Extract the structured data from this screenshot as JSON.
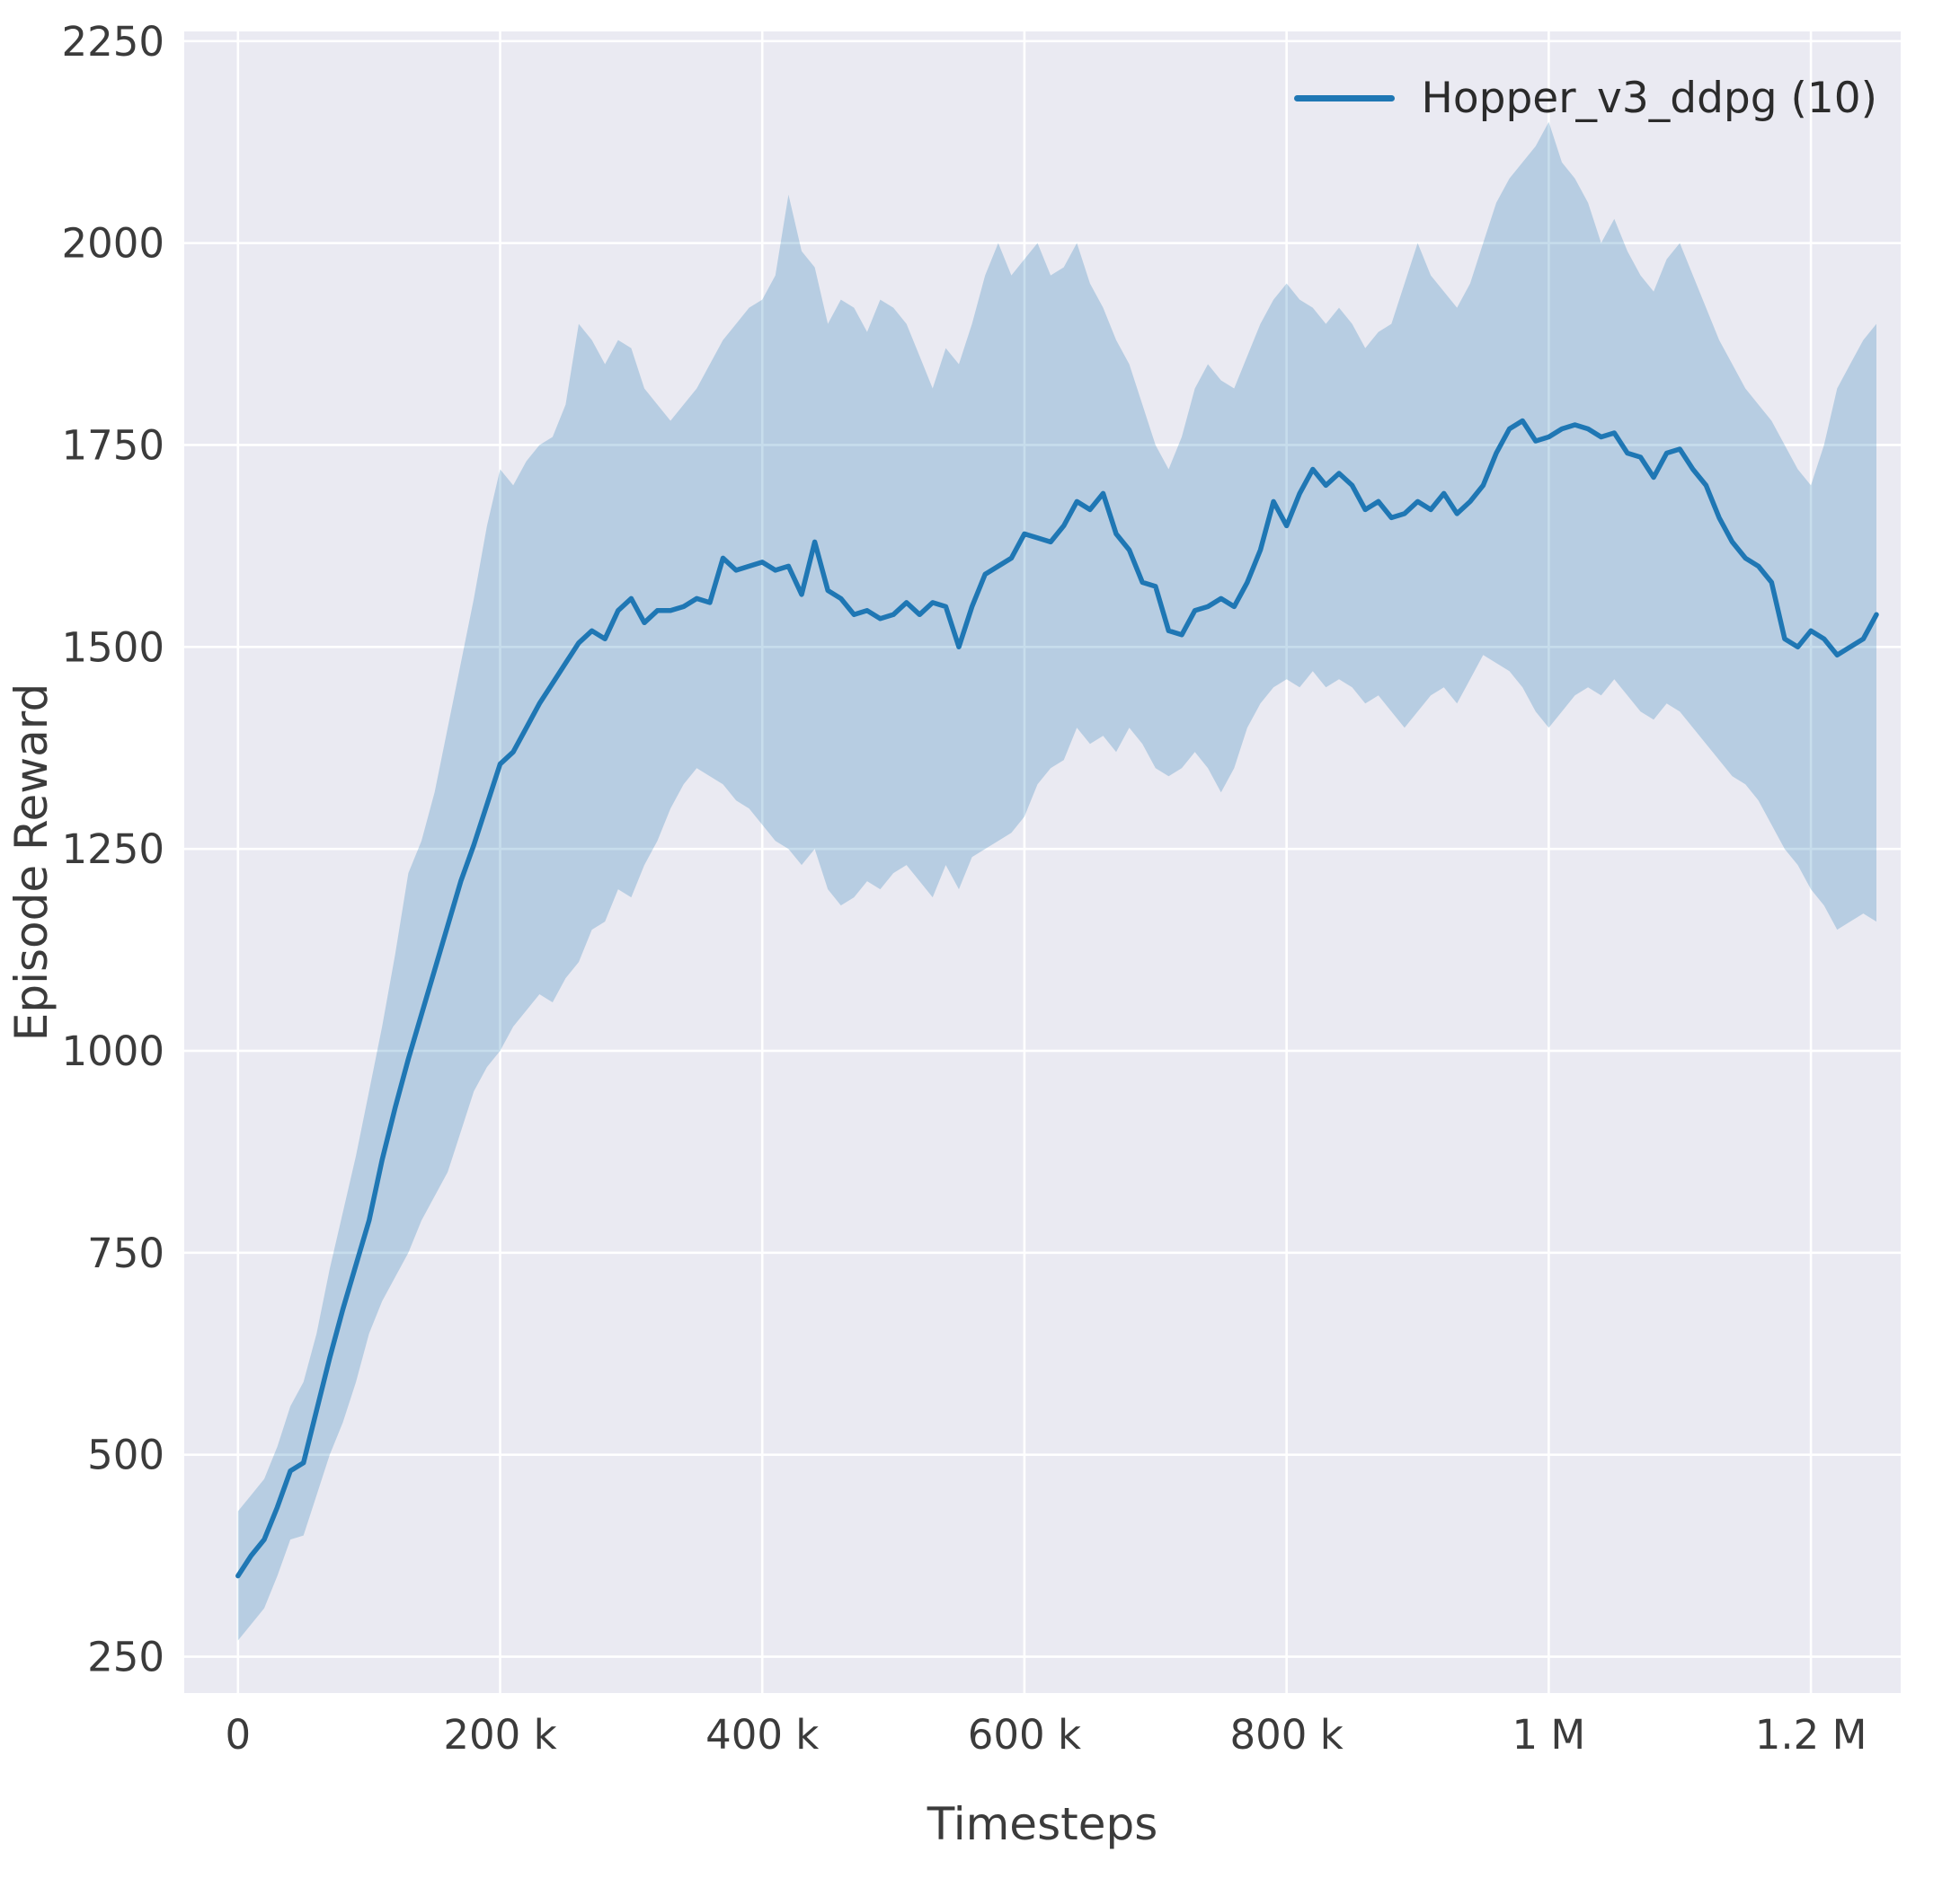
{
  "chart_data": {
    "type": "line",
    "title": "",
    "xlabel": "Timesteps",
    "ylabel": "Episode Reward",
    "grid": true,
    "legend_position": "upper right",
    "xlim": [
      -41000,
      1268500
    ],
    "ylim": [
      205,
      2262
    ],
    "x_ticks": [
      {
        "value": 0,
        "label": "0"
      },
      {
        "value": 200000,
        "label": "200 k"
      },
      {
        "value": 400000,
        "label": "400 k"
      },
      {
        "value": 600000,
        "label": "600 k"
      },
      {
        "value": 800000,
        "label": "800 k"
      },
      {
        "value": 1000000,
        "label": "1 M"
      },
      {
        "value": 1200000,
        "label": "1.2 M"
      }
    ],
    "y_ticks": [
      {
        "value": 250,
        "label": "250"
      },
      {
        "value": 500,
        "label": "500"
      },
      {
        "value": 750,
        "label": "750"
      },
      {
        "value": 1000,
        "label": "1000"
      },
      {
        "value": 1250,
        "label": "1250"
      },
      {
        "value": 1500,
        "label": "1500"
      },
      {
        "value": 1750,
        "label": "1750"
      },
      {
        "value": 2000,
        "label": "2000"
      },
      {
        "value": 2250,
        "label": "2250"
      }
    ],
    "x_start": 0,
    "x_step": 10000,
    "style": {
      "background": "#eaeaf2",
      "grid_color": "#ffffff",
      "text_color": "#3b3b3b"
    },
    "series": [
      {
        "name": "Hopper_v3_ddpg (10)",
        "color": "#1f77b4",
        "band_opacity": 0.25,
        "mean": [
          350,
          375,
          395,
          435,
          480,
          490,
          555,
          620,
          680,
          735,
          790,
          865,
          930,
          990,
          1045,
          1100,
          1155,
          1210,
          1255,
          1305,
          1355,
          1370,
          1400,
          1430,
          1455,
          1480,
          1505,
          1520,
          1510,
          1545,
          1560,
          1530,
          1545,
          1545,
          1550,
          1560,
          1555,
          1610,
          1595,
          1600,
          1605,
          1595,
          1600,
          1565,
          1630,
          1570,
          1560,
          1540,
          1545,
          1535,
          1540,
          1555,
          1540,
          1555,
          1550,
          1500,
          1550,
          1590,
          1600,
          1610,
          1640,
          1635,
          1630,
          1650,
          1680,
          1670,
          1690,
          1640,
          1620,
          1580,
          1575,
          1520,
          1515,
          1545,
          1550,
          1560,
          1550,
          1580,
          1620,
          1680,
          1650,
          1690,
          1720,
          1700,
          1715,
          1700,
          1670,
          1680,
          1660,
          1665,
          1680,
          1670,
          1690,
          1665,
          1680,
          1700,
          1740,
          1770,
          1780,
          1755,
          1760,
          1770,
          1775,
          1770,
          1760,
          1765,
          1740,
          1735,
          1710,
          1740,
          1745,
          1720,
          1700,
          1660,
          1630,
          1610,
          1600,
          1580,
          1510,
          1500,
          1520,
          1510,
          1490,
          1500,
          1510,
          1540
        ],
        "lower": [
          270,
          290,
          310,
          350,
          395,
          400,
          450,
          500,
          540,
          590,
          650,
          690,
          720,
          750,
          790,
          820,
          850,
          900,
          950,
          980,
          1000,
          1030,
          1050,
          1070,
          1060,
          1090,
          1110,
          1150,
          1160,
          1200,
          1190,
          1230,
          1260,
          1300,
          1330,
          1350,
          1340,
          1330,
          1310,
          1300,
          1280,
          1260,
          1250,
          1230,
          1250,
          1200,
          1180,
          1190,
          1210,
          1200,
          1220,
          1230,
          1210,
          1190,
          1230,
          1200,
          1240,
          1250,
          1260,
          1270,
          1290,
          1330,
          1350,
          1360,
          1400,
          1380,
          1390,
          1370,
          1400,
          1380,
          1350,
          1340,
          1350,
          1370,
          1350,
          1320,
          1350,
          1400,
          1430,
          1450,
          1460,
          1450,
          1470,
          1450,
          1460,
          1450,
          1430,
          1440,
          1420,
          1400,
          1420,
          1440,
          1450,
          1430,
          1460,
          1490,
          1480,
          1470,
          1450,
          1420,
          1400,
          1420,
          1440,
          1450,
          1440,
          1460,
          1440,
          1420,
          1410,
          1430,
          1420,
          1400,
          1380,
          1360,
          1340,
          1330,
          1310,
          1280,
          1250,
          1230,
          1200,
          1180,
          1150,
          1160,
          1170,
          1160
        ],
        "upper": [
          430,
          450,
          470,
          510,
          560,
          590,
          650,
          730,
          800,
          870,
          950,
          1030,
          1120,
          1220,
          1260,
          1320,
          1400,
          1480,
          1560,
          1650,
          1720,
          1700,
          1730,
          1750,
          1760,
          1800,
          1900,
          1880,
          1850,
          1880,
          1870,
          1820,
          1800,
          1780,
          1800,
          1820,
          1850,
          1880,
          1900,
          1920,
          1930,
          1960,
          2060,
          1990,
          1970,
          1900,
          1930,
          1920,
          1890,
          1930,
          1920,
          1900,
          1860,
          1820,
          1870,
          1850,
          1900,
          1960,
          2000,
          1960,
          1980,
          2000,
          1960,
          1970,
          2000,
          1950,
          1920,
          1880,
          1850,
          1800,
          1750,
          1720,
          1760,
          1820,
          1850,
          1830,
          1820,
          1860,
          1900,
          1930,
          1950,
          1930,
          1920,
          1900,
          1920,
          1900,
          1870,
          1890,
          1900,
          1950,
          2000,
          1960,
          1940,
          1920,
          1950,
          2000,
          2050,
          2080,
          2100,
          2120,
          2150,
          2100,
          2080,
          2050,
          2000,
          2030,
          1990,
          1960,
          1940,
          1980,
          2000,
          1960,
          1920,
          1880,
          1850,
          1820,
          1800,
          1780,
          1750,
          1720,
          1700,
          1750,
          1820,
          1850,
          1880,
          1900
        ]
      }
    ]
  }
}
